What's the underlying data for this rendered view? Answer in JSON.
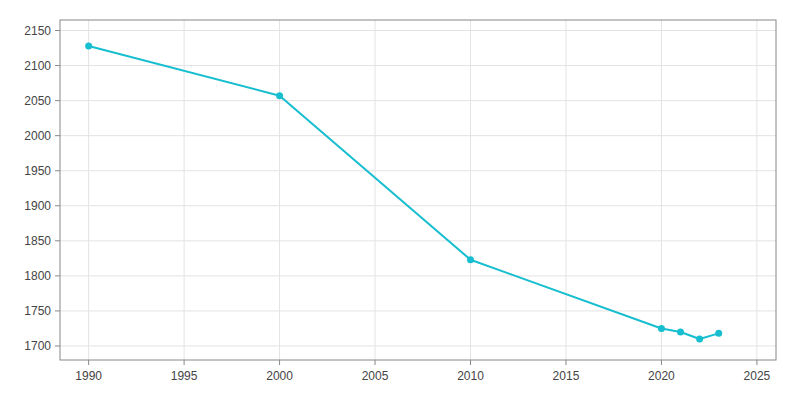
{
  "chart_data": {
    "type": "line",
    "x": [
      1990,
      2000,
      2010,
      2020,
      2021,
      2022,
      2023
    ],
    "values": [
      2128,
      2057,
      1823,
      1725,
      1720,
      1710,
      1718
    ],
    "color": "#17becf",
    "marker": "circle",
    "xlim": [
      1988.5,
      2026
    ],
    "ylim": [
      1680,
      2165
    ],
    "xticks": [
      1990,
      1995,
      2000,
      2005,
      2010,
      2015,
      2020,
      2025
    ],
    "yticks": [
      1700,
      1750,
      1800,
      1850,
      1900,
      1950,
      2000,
      2050,
      2100,
      2150
    ],
    "grid": true
  }
}
